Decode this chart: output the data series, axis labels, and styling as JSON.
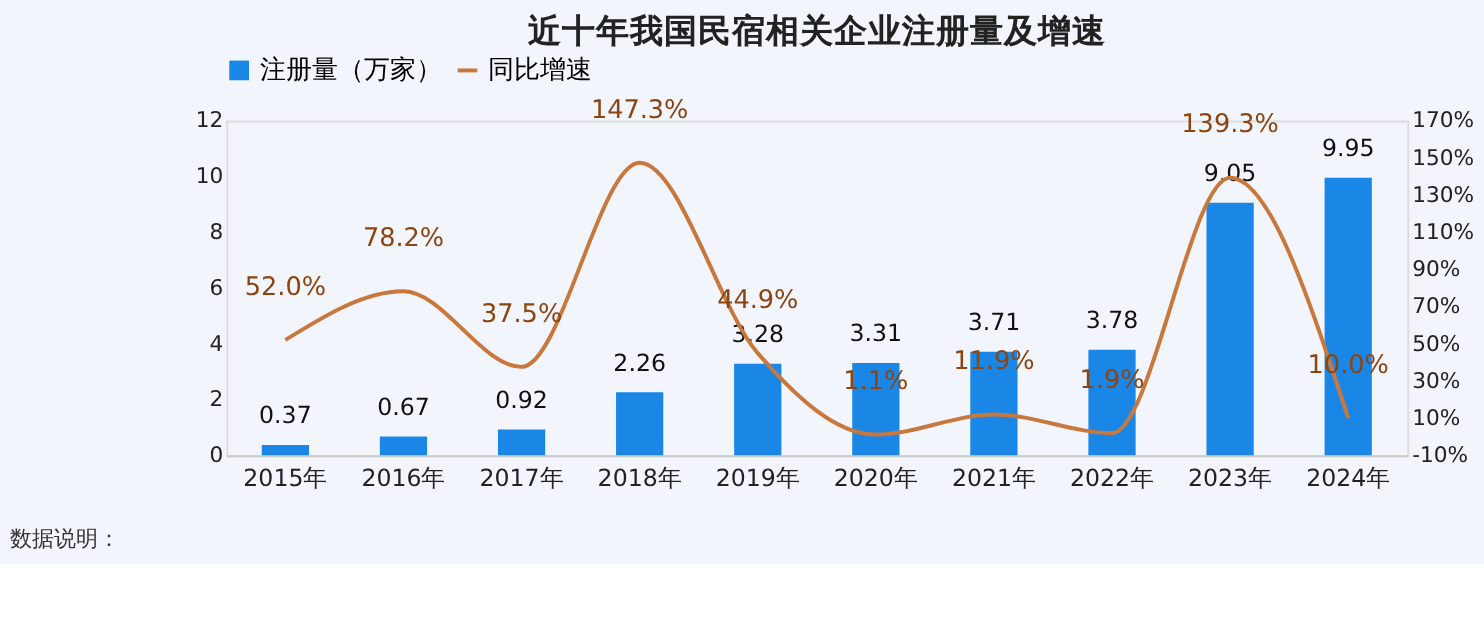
{
  "chart_data": {
    "type": "bar",
    "title": "近十年我国民宿相关企业注册量及增速",
    "categories": [
      "2015年",
      "2016年",
      "2017年",
      "2018年",
      "2019年",
      "2020年",
      "2021年",
      "2022年",
      "2023年",
      "2024年"
    ],
    "series": [
      {
        "name": "注册量（万家）",
        "type": "bar",
        "color": "#1a87e6",
        "values": [
          0.37,
          0.67,
          0.92,
          2.26,
          3.28,
          3.31,
          3.71,
          3.78,
          9.05,
          9.95
        ]
      },
      {
        "name": "同比增速",
        "type": "line",
        "axis": "y2",
        "color": "#c8783c",
        "values": [
          52.0,
          78.2,
          37.5,
          147.3,
          44.9,
          1.1,
          11.9,
          1.9,
          139.3,
          10.0
        ],
        "value_labels": [
          "52.0%",
          "78.2%",
          "37.5%",
          "147.3%",
          "44.9%",
          "1.1%",
          "11.9%",
          "1.9%",
          "139.3%",
          "10.0%"
        ]
      }
    ],
    "data_labels": true,
    "ylim": [
      0,
      12
    ],
    "yticks": [
      0,
      2,
      4,
      6,
      8,
      10,
      12
    ],
    "y2lim": [
      -10,
      170
    ],
    "y2ticks": [
      {
        "value": -10,
        "label": "-10%"
      },
      {
        "value": 10,
        "label": "10%"
      },
      {
        "value": 30,
        "label": "30%"
      },
      {
        "value": 50,
        "label": "50%"
      },
      {
        "value": 70,
        "label": "70%"
      },
      {
        "value": 90,
        "label": "90%"
      },
      {
        "value": 110,
        "label": "110%"
      },
      {
        "value": 130,
        "label": "130%"
      },
      {
        "value": 150,
        "label": "150%"
      },
      {
        "value": 170,
        "label": "170%"
      }
    ],
    "grid": false,
    "legend": "top",
    "marker": "none",
    "line_style": "solid",
    "annotations": [
      "数据说明："
    ]
  }
}
